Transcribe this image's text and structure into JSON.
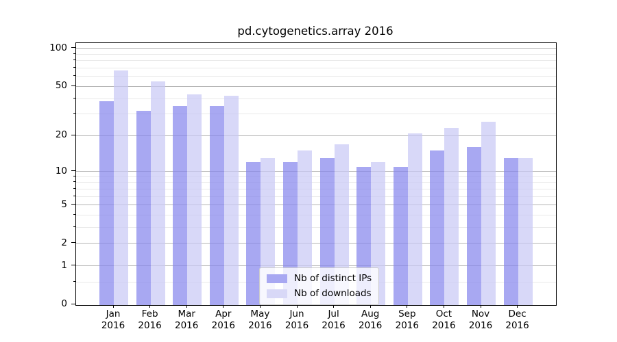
{
  "chart_data": {
    "type": "bar",
    "title": "pd.cytogenetics.array 2016",
    "categories": [
      "Jan",
      "Feb",
      "Mar",
      "Apr",
      "May",
      "Jun",
      "Jul",
      "Aug",
      "Sep",
      "Oct",
      "Nov",
      "Dec"
    ],
    "category_year": "2016",
    "series": [
      {
        "name": "Nb of distinct IPs",
        "color": "#a8a8f2",
        "bar_fill": "rgba(131,131,236,0.7)",
        "values": [
          38,
          32,
          35,
          35,
          12,
          12,
          13,
          11,
          11,
          15,
          16,
          13
        ]
      },
      {
        "name": "Nb of downloads",
        "color": "#d8d8f7",
        "bar_fill": "rgba(199,199,245,0.7)",
        "values": [
          67,
          55,
          43,
          42,
          13,
          15,
          17,
          12,
          21,
          23,
          26,
          13
        ]
      }
    ],
    "y_scale": "log1p",
    "y_major_ticks": [
      0,
      1,
      2,
      5,
      10,
      20,
      50,
      100
    ],
    "y_minor_ticks": [
      0.5,
      3,
      4,
      6,
      7,
      8,
      9,
      30,
      40,
      60,
      70,
      80,
      90
    ],
    "ylim": [
      0,
      111
    ],
    "xlabel": "",
    "ylabel": "",
    "grid": true,
    "legend_position": "lower center"
  },
  "legend": {
    "items": [
      "Nb of distinct IPs",
      "Nb of downloads"
    ]
  },
  "colors": {
    "background": "#ffffff",
    "spine": "#000000",
    "grid_major": "#b4b4b4",
    "grid_minor": "#e9e9e9",
    "text": "#000000",
    "legend_border": "#cccccc",
    "legend_bg": "rgba(255,255,255,0.8)"
  }
}
